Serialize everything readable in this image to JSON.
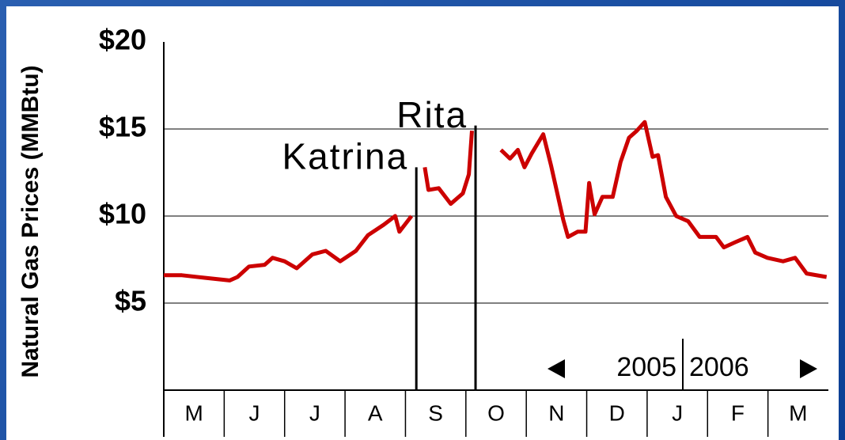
{
  "chart_data": {
    "type": "line",
    "y_label": "Natural Gas Prices (MMBtu)",
    "categories": [
      "M",
      "J",
      "J",
      "A",
      "S",
      "O",
      "N",
      "D",
      "J",
      "F",
      "M"
    ],
    "xlim": [
      0,
      11
    ],
    "ylim": [
      0,
      20
    ],
    "yticks": [
      {
        "value": 5,
        "label": "$5"
      },
      {
        "value": 10,
        "label": "$10"
      },
      {
        "value": 15,
        "label": "$15"
      },
      {
        "value": 20,
        "label": "$20"
      }
    ],
    "grid": true,
    "series": [
      {
        "color": "#cc0000",
        "x": [
          0,
          0.3,
          0.69,
          1.09,
          1.22,
          1.41,
          1.67,
          1.8,
          2.0,
          2.2,
          2.46,
          2.68,
          2.92,
          3.18,
          3.38,
          3.64,
          3.83,
          3.9,
          4.1,
          null,
          4.32,
          4.38,
          4.55,
          4.75,
          4.95,
          5.05,
          5.1,
          null,
          5.58,
          5.73,
          5.86,
          5.97,
          6.09,
          6.28,
          6.41,
          6.61,
          6.69,
          6.85,
          6.98,
          7.04,
          7.13,
          7.26,
          7.43,
          7.56,
          7.7,
          7.83,
          7.96,
          8.09,
          8.18,
          8.31,
          8.48,
          8.68,
          8.87,
          9.14,
          9.27,
          9.46,
          9.66,
          9.79,
          9.99,
          10.25,
          10.45,
          10.64,
          10.97
        ],
        "values": [
          6.6,
          6.6,
          6.45,
          6.3,
          6.5,
          7.1,
          7.2,
          7.6,
          7.4,
          7.0,
          7.8,
          8.0,
          7.4,
          8.0,
          8.9,
          9.5,
          10.0,
          9.1,
          10.0,
          null,
          12.8,
          11.5,
          11.6,
          10.7,
          11.3,
          12.4,
          14.9,
          null,
          13.8,
          13.3,
          13.8,
          12.8,
          13.6,
          14.7,
          12.9,
          9.8,
          8.8,
          9.1,
          9.1,
          11.9,
          10.1,
          11.1,
          11.1,
          13.1,
          14.5,
          14.9,
          15.4,
          13.4,
          13.5,
          11.1,
          10.0,
          9.7,
          8.8,
          8.8,
          8.2,
          8.5,
          8.8,
          7.9,
          7.6,
          7.4,
          7.6,
          6.7,
          6.5
        ]
      }
    ],
    "annotations": [
      {
        "text": "Katrina",
        "x": 4.18,
        "y": 12.8
      },
      {
        "text": "Rita",
        "x": 5.16,
        "y": 15.2
      }
    ],
    "years": [
      "2005",
      "2006"
    ]
  }
}
